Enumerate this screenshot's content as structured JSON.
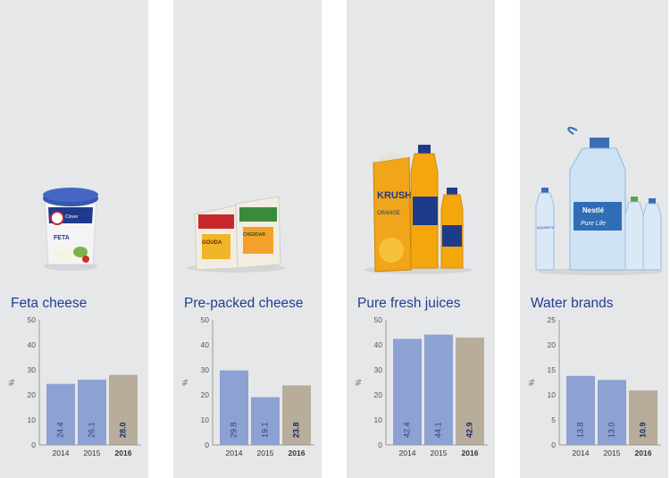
{
  "colors": {
    "panel_bg": "#e6e7e8",
    "bar_prior": "#8da2d2",
    "bar_current": "#b7ad9a",
    "title": "#1f3e91",
    "label_prior": "#2b3f8c",
    "label_current": "#1a2a6c"
  },
  "chart_data": [
    {
      "type": "bar",
      "title": "Feta cheese",
      "ylabel": "%",
      "categories": [
        "2014",
        "2015",
        "2016"
      ],
      "values": [
        24.4,
        26.1,
        28.0
      ],
      "value_labels": [
        "24.4",
        "26.1",
        "28.0"
      ],
      "ylim": [
        0,
        50
      ],
      "yticks": [
        "0",
        "10",
        "20",
        "30",
        "40",
        "50"
      ],
      "highlight": "2016",
      "grid": false,
      "product_icon": "feta-tub-icon"
    },
    {
      "type": "bar",
      "title": "Pre-packed cheese",
      "ylabel": "%",
      "categories": [
        "2014",
        "2015",
        "2016"
      ],
      "values": [
        29.8,
        19.1,
        23.8
      ],
      "value_labels": [
        "29.8",
        "19.1",
        "23.8"
      ],
      "ylim": [
        0,
        50
      ],
      "yticks": [
        "0",
        "10",
        "20",
        "30",
        "40",
        "50"
      ],
      "highlight": "2016",
      "grid": false,
      "product_icon": "cheese-packs-icon"
    },
    {
      "type": "bar",
      "title": "Pure fresh juices",
      "ylabel": "%",
      "categories": [
        "2014",
        "2015",
        "2016"
      ],
      "values": [
        42.4,
        44.1,
        42.9
      ],
      "value_labels": [
        "42.4",
        "44.1",
        "42.9"
      ],
      "ylim": [
        0,
        50
      ],
      "yticks": [
        "0",
        "10",
        "20",
        "30",
        "40",
        "50"
      ],
      "highlight": "2016",
      "grid": false,
      "product_icon": "juice-bottles-icon"
    },
    {
      "type": "bar",
      "title": "Water brands",
      "ylabel": "%",
      "categories": [
        "2014",
        "2015",
        "2016"
      ],
      "values": [
        13.8,
        13.0,
        10.9
      ],
      "value_labels": [
        "13.8",
        "13.0",
        "10.9"
      ],
      "ylim": [
        0,
        25
      ],
      "yticks": [
        "0",
        "5",
        "10",
        "15",
        "20",
        "25"
      ],
      "highlight": "2016",
      "grid": false,
      "product_icon": "water-bottles-icon"
    }
  ],
  "product_labels": {
    "feta": {
      "brand": "Clover",
      "line1": "FETA"
    },
    "cheese": {
      "left": "GOUDA",
      "right": "CHEDDAR"
    },
    "juice": {
      "brand": "KRUSH",
      "flavour": "ORANGE"
    },
    "water": {
      "brand": "Nestlé",
      "sub": "Pure Life",
      "small": "AQUARTZ"
    }
  }
}
